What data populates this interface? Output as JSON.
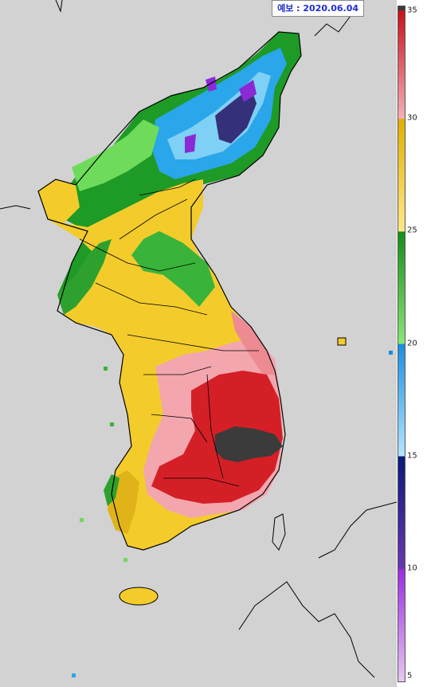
{
  "forecast_label": "예보 : 2020.06.04",
  "legend": {
    "ticks": [
      {
        "value": 35,
        "label": "35"
      },
      {
        "value": 30,
        "label": "30"
      },
      {
        "value": 25,
        "label": "25"
      },
      {
        "value": 20,
        "label": "20"
      },
      {
        "value": 15,
        "label": "15"
      },
      {
        "value": 10,
        "label": "10"
      },
      {
        "value": 5,
        "label": "5"
      }
    ],
    "range": [
      5,
      35
    ],
    "color_stops": [
      {
        "from": 5,
        "to": 10,
        "colors": [
          "#e6c8f0",
          "#9a2ce0"
        ]
      },
      {
        "from": 10,
        "to": 15,
        "colors": [
          "#6a38b0",
          "#0a1a7a"
        ]
      },
      {
        "from": 15,
        "to": 20,
        "colors": [
          "#b4e6ff",
          "#1a8ee0"
        ]
      },
      {
        "from": 20,
        "to": 25,
        "colors": [
          "#8ce67a",
          "#168c1c"
        ]
      },
      {
        "from": 25,
        "to": 30,
        "colors": [
          "#ffe88a",
          "#e0b000"
        ]
      },
      {
        "from": 30,
        "to": 35,
        "colors": [
          "#f5b0b8",
          "#c8101a"
        ]
      }
    ],
    "max_color": "#3a3a3a"
  },
  "map": {
    "region": "Korean Peninsula",
    "background_color": "#d2d2d2",
    "coastline_color": "#000000"
  }
}
